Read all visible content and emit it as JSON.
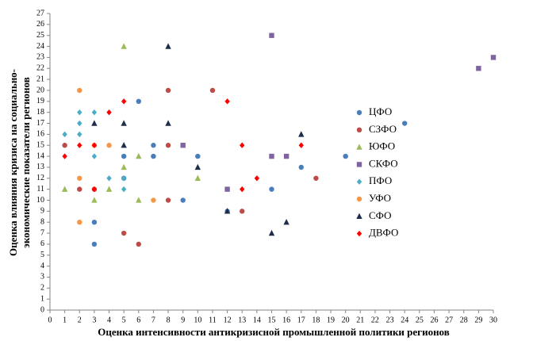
{
  "chart_data": {
    "type": "scatter",
    "x_label": "Оценка интенсивности антикризисной промышленной политики регионов",
    "y_label": [
      "Оценка влияния кризиса на социально-",
      "экономические показатели регионов"
    ],
    "xlim": [
      0,
      30
    ],
    "ylim": [
      0,
      27
    ],
    "xticks": [
      0,
      1,
      2,
      3,
      4,
      5,
      6,
      7,
      8,
      9,
      10,
      11,
      12,
      13,
      14,
      15,
      16,
      17,
      18,
      19,
      20,
      21,
      22,
      23,
      24,
      25,
      26,
      27,
      28,
      29,
      30
    ],
    "yticks": [
      0,
      1,
      2,
      3,
      4,
      5,
      6,
      7,
      8,
      9,
      10,
      11,
      12,
      13,
      14,
      15,
      16,
      17,
      18,
      19,
      20,
      21,
      22,
      23,
      24,
      25,
      26,
      27
    ],
    "grid": false,
    "legend": "right",
    "series": [
      {
        "name": "ЦФО",
        "color": "#4a7ebb",
        "marker": "circle",
        "x": [
          6,
          7,
          7,
          5,
          5,
          10,
          9,
          3,
          3,
          12,
          15,
          17,
          20,
          24
        ],
        "values": [
          19,
          15,
          14,
          14,
          12,
          14,
          10,
          8,
          6,
          9,
          11,
          13,
          14,
          17
        ]
      },
      {
        "name": "СЗФО",
        "color": "#be4b48",
        "marker": "circle",
        "x": [
          1,
          2,
          8,
          8,
          11,
          8,
          5,
          6,
          13,
          18,
          3
        ],
        "values": [
          15,
          11,
          20,
          15,
          20,
          10,
          7,
          6,
          9,
          12,
          11
        ]
      },
      {
        "name": "ЮФО",
        "color": "#9bbb59",
        "marker": "triangle",
        "x": [
          5,
          1,
          3,
          4,
          5,
          6,
          6,
          10
        ],
        "values": [
          24,
          11,
          10,
          11,
          13,
          14,
          10,
          12
        ]
      },
      {
        "name": "СКФО",
        "color": "#8064a2",
        "marker": "square",
        "x": [
          15,
          29,
          30,
          9,
          12,
          15,
          16
        ],
        "values": [
          25,
          22,
          23,
          15,
          11,
          14,
          14
        ]
      },
      {
        "name": "ПФО",
        "color": "#4bacc6",
        "marker": "diamond",
        "x": [
          1,
          2,
          2,
          2,
          3,
          3,
          4,
          5,
          5
        ],
        "values": [
          16,
          18,
          17,
          16,
          18,
          14,
          12,
          12,
          11
        ]
      },
      {
        "name": "УФО",
        "color": "#f79646",
        "marker": "circle",
        "x": [
          2,
          2,
          2,
          3,
          4,
          7
        ],
        "values": [
          20,
          12,
          8,
          15,
          15,
          10
        ]
      },
      {
        "name": "СФО",
        "color": "#1f2d4d",
        "marker": "triangle",
        "x": [
          8,
          3,
          5,
          8,
          5,
          10,
          17,
          12,
          15,
          16
        ],
        "values": [
          24,
          17,
          17,
          17,
          15,
          13,
          16,
          9,
          7,
          8
        ]
      },
      {
        "name": "ДВФО",
        "color": "#ff0000",
        "marker": "diamond",
        "x": [
          1,
          2,
          3,
          4,
          5,
          12,
          13,
          3,
          13,
          14,
          17
        ],
        "values": [
          14,
          15,
          15,
          18,
          19,
          19,
          15,
          11,
          11,
          12,
          15
        ]
      }
    ]
  }
}
